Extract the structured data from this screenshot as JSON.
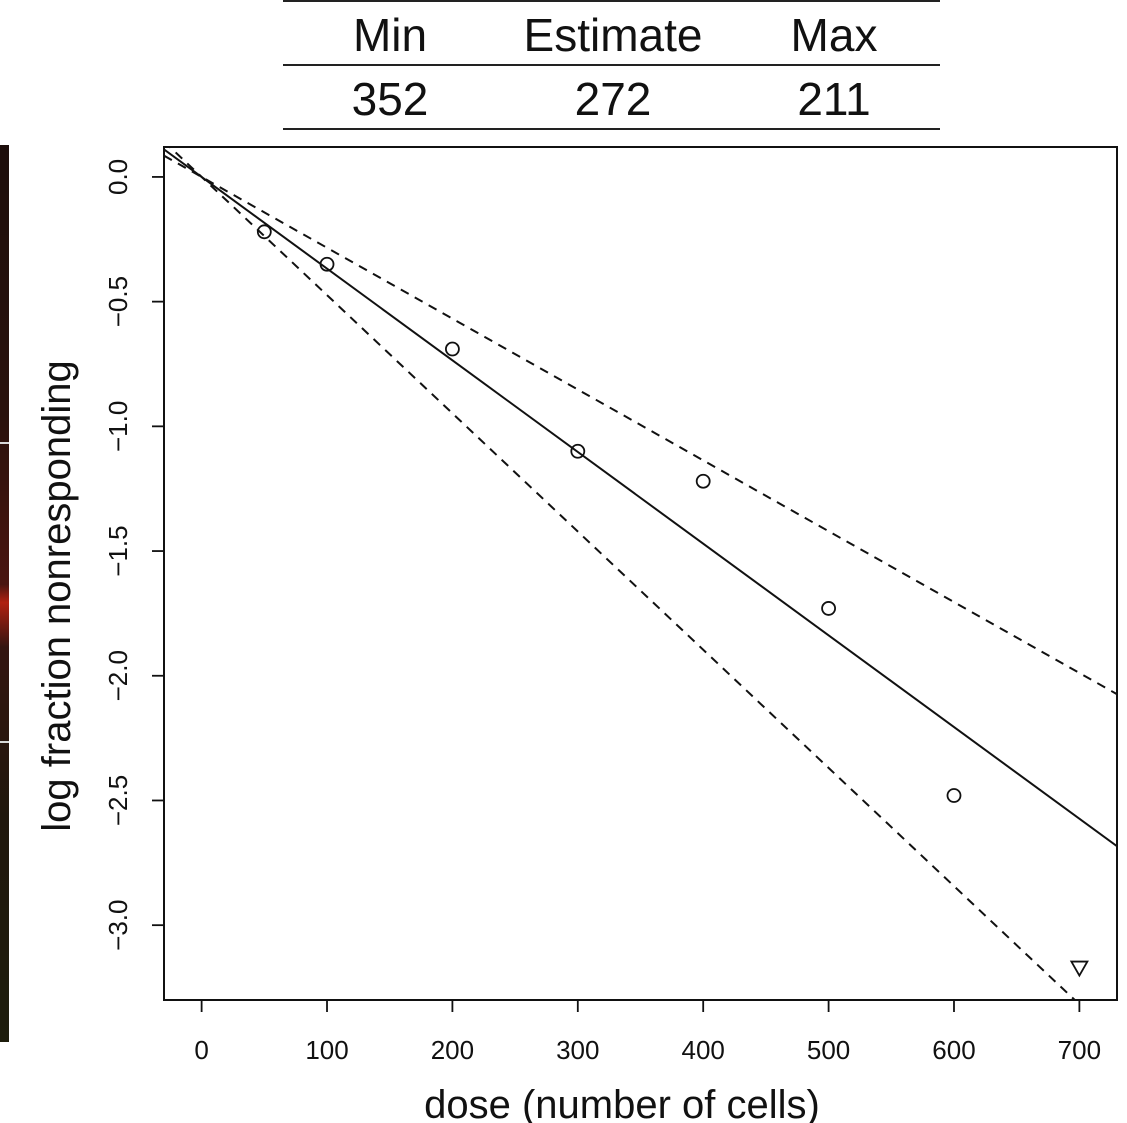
{
  "table": {
    "headers": [
      "Min",
      "Estimate",
      "Max"
    ],
    "values": [
      "352",
      "272",
      "211"
    ]
  },
  "chart_data": {
    "type": "scatter",
    "xlabel": "dose (number of cells)",
    "ylabel": "log fraction nonresponding",
    "xlim": [
      -30,
      730
    ],
    "ylim": [
      -3.3,
      0.12
    ],
    "x_ticks": [
      0,
      100,
      200,
      300,
      400,
      500,
      600,
      700
    ],
    "y_ticks": [
      0.0,
      -0.5,
      -1.0,
      -1.5,
      -2.0,
      -2.5,
      -3.0
    ],
    "x_tick_labels": [
      "0",
      "100",
      "200",
      "300",
      "400",
      "500",
      "600",
      "700"
    ],
    "y_tick_labels": [
      "0.0",
      "−0.5",
      "−1.0",
      "−1.5",
      "−2.0",
      "−2.5",
      "−3.0"
    ],
    "points": [
      {
        "x": 50,
        "y": -0.22
      },
      {
        "x": 100,
        "y": -0.35
      },
      {
        "x": 200,
        "y": -0.69
      },
      {
        "x": 300,
        "y": -1.1
      },
      {
        "x": 400,
        "y": -1.22
      },
      {
        "x": 500,
        "y": -1.73
      },
      {
        "x": 600,
        "y": -2.48
      }
    ],
    "censored_points": [
      {
        "x": 700,
        "y": -3.17
      }
    ],
    "lines": [
      {
        "style": "solid",
        "slope": -0.003676,
        "intercept": 0.0
      },
      {
        "style": "dashed",
        "slope": -0.002841,
        "intercept": 0.0
      },
      {
        "style": "dashed",
        "slope": -0.004739,
        "intercept": 0.0
      }
    ],
    "grid": false
  }
}
